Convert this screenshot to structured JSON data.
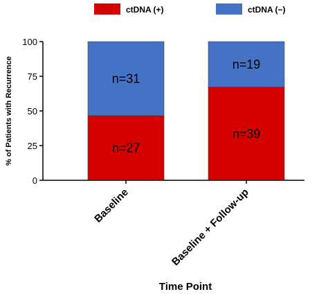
{
  "chart_data": {
    "type": "bar",
    "stacked": true,
    "categories": [
      "Baseline",
      "Baseline + Follow-up"
    ],
    "series": [
      {
        "name": "ctDNA (+)",
        "color": "#d40000",
        "values": [
          46.6,
          67.2
        ],
        "labels": [
          "n=27",
          "n=39"
        ]
      },
      {
        "name": "ctDNA (−)",
        "color": "#4472c4",
        "values": [
          53.4,
          32.8
        ],
        "labels": [
          "n=31",
          "n=19"
        ]
      }
    ],
    "xlabel": "Time Point",
    "ylabel": "% of Patients with Recurrence",
    "ylim": [
      0,
      100
    ],
    "yticks": [
      0,
      25,
      50,
      75,
      100
    ],
    "legend_position": "top",
    "grid": false
  }
}
